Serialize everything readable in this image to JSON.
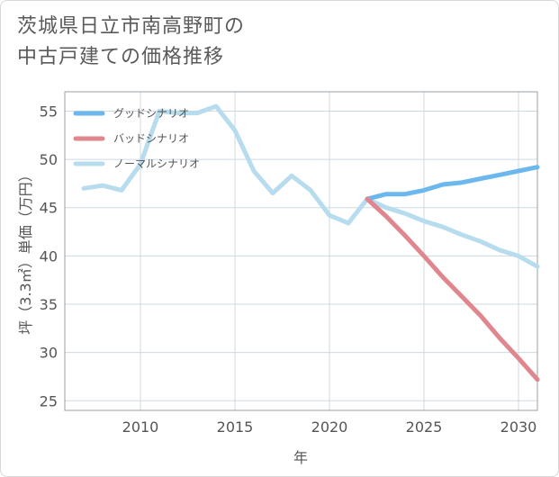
{
  "title_lines": [
    "茨城県日立市南高野町の",
    "中古戸建ての価格推移"
  ],
  "chart_data": {
    "type": "line",
    "title": "茨城県日立市南高野町の中古戸建ての価格推移",
    "xlabel": "年",
    "ylabel": "坪（3.3㎡）単価（万円）",
    "xlim": [
      2006,
      2031
    ],
    "ylim": [
      24,
      57
    ],
    "xticks": [
      2010,
      2015,
      2020,
      2025,
      2030
    ],
    "yticks": [
      25,
      30,
      35,
      40,
      45,
      50,
      55
    ],
    "grid": true,
    "legend_position": "top-left",
    "series": [
      {
        "name": "グッドシナリオ",
        "color": "#6cb8ee",
        "x": [
          2022,
          2023,
          2024,
          2025,
          2026,
          2027,
          2028,
          2029,
          2030,
          2031
        ],
        "y": [
          45.9,
          46.4,
          46.4,
          46.8,
          47.4,
          47.6,
          48.0,
          48.4,
          48.8,
          49.2
        ]
      },
      {
        "name": "バッドシナリオ",
        "color": "#e0868e",
        "x": [
          2022,
          2023,
          2024,
          2025,
          2026,
          2027,
          2028,
          2029,
          2030,
          2031
        ],
        "y": [
          45.9,
          44.1,
          42.1,
          40.0,
          37.8,
          35.8,
          33.8,
          31.5,
          29.4,
          27.2
        ]
      },
      {
        "name": "ノーマルシナリオ",
        "color": "#b6dcee",
        "x": [
          2007,
          2008,
          2009,
          2010,
          2011,
          2012,
          2013,
          2014,
          2015,
          2016,
          2017,
          2018,
          2019,
          2020,
          2021,
          2022,
          2023,
          2024,
          2025,
          2026,
          2027,
          2028,
          2029,
          2030,
          2031
        ],
        "y": [
          47.0,
          47.3,
          46.8,
          49.5,
          55.0,
          54.8,
          54.8,
          55.5,
          53.0,
          48.8,
          46.5,
          48.3,
          46.8,
          44.2,
          43.4,
          45.9,
          45.0,
          44.4,
          43.6,
          43.0,
          42.2,
          41.5,
          40.6,
          40.0,
          38.9
        ]
      }
    ]
  }
}
